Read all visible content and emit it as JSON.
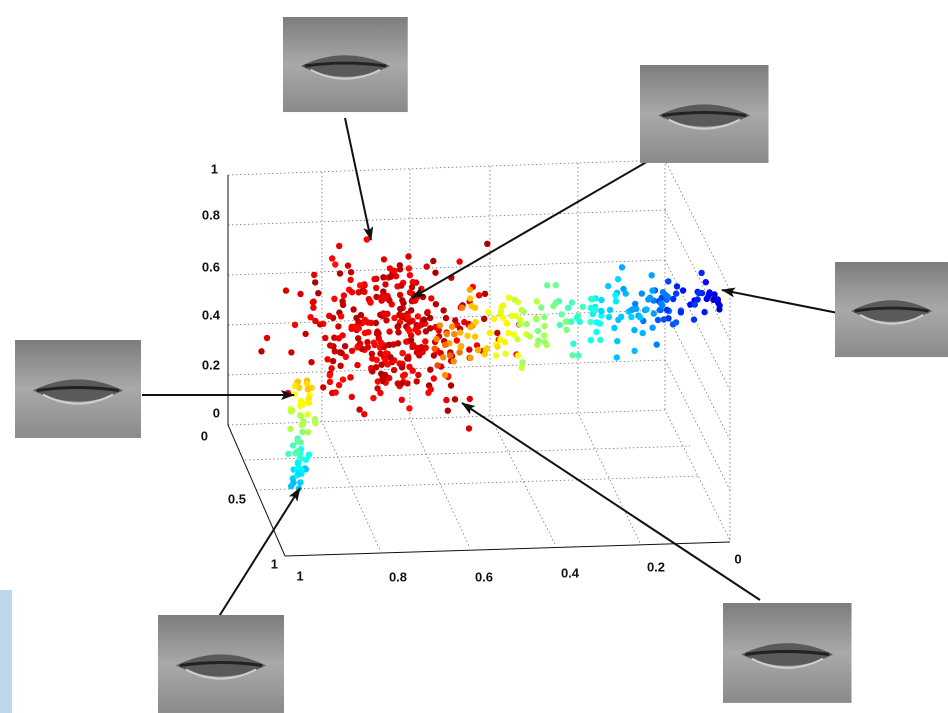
{
  "axes": {
    "z_ticks": [
      "1",
      "0.8",
      "0.6",
      "0.4",
      "0.2",
      "0"
    ],
    "depth_ticks": [
      "0",
      "0.5",
      "1"
    ],
    "x_ticks": [
      "1",
      "0.8",
      "0.6",
      "0.4",
      "0.2",
      "0"
    ]
  }
}
